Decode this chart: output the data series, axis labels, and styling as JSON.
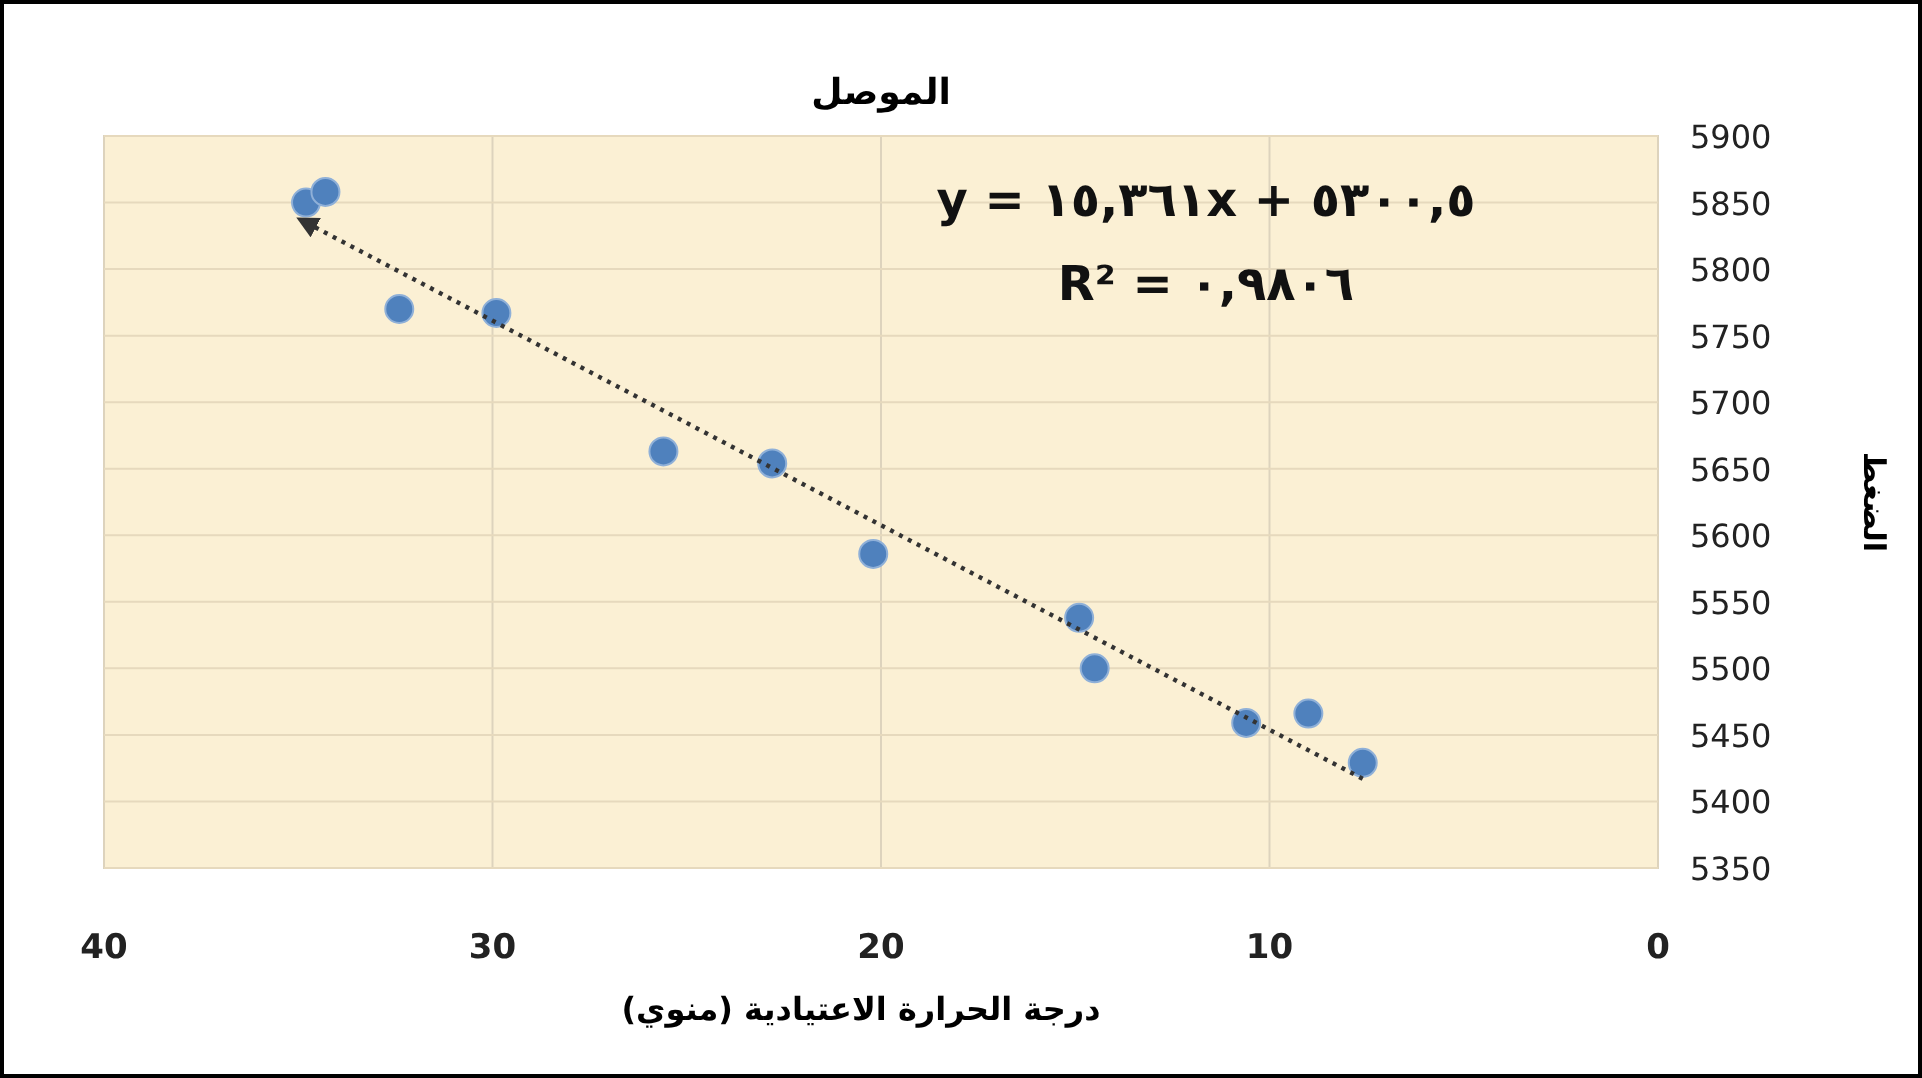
{
  "chart_data": {
    "type": "scatter",
    "title": "الموصل",
    "xlabel": "درجة الحرارة الاعتيادية (منوي)",
    "ylabel": "الضغط",
    "annotations": [
      "y = ١٥,٣٦١x + ٥٣٠٠,٥",
      "R² = ٠,٩٨٠٦"
    ],
    "series": [
      {
        "color": "#4f81bd",
        "marker": "circle",
        "x": [
          34.8,
          34.3,
          32.4,
          29.9,
          25.6,
          22.8,
          20.2,
          14.9,
          14.5,
          10.6,
          9.0,
          7.6
        ],
        "values": [
          5850,
          5858,
          5770,
          5767,
          5663,
          5654,
          5586,
          5538,
          5500,
          5459,
          5466,
          5429
        ]
      },
      {
        "type": "line",
        "color": "#333333",
        "line_style": "dotted",
        "x": [
          7.6,
          34.8
        ],
        "values": [
          5417,
          5835
        ]
      }
    ],
    "xlim": [
      40,
      0
    ],
    "ylim": [
      5350,
      5900
    ],
    "xticks": [
      40,
      30,
      20,
      10,
      0
    ],
    "yticks": [
      5350,
      5400,
      5450,
      5500,
      5550,
      5600,
      5650,
      5700,
      5750,
      5800,
      5850,
      5900
    ],
    "grid": true
  }
}
